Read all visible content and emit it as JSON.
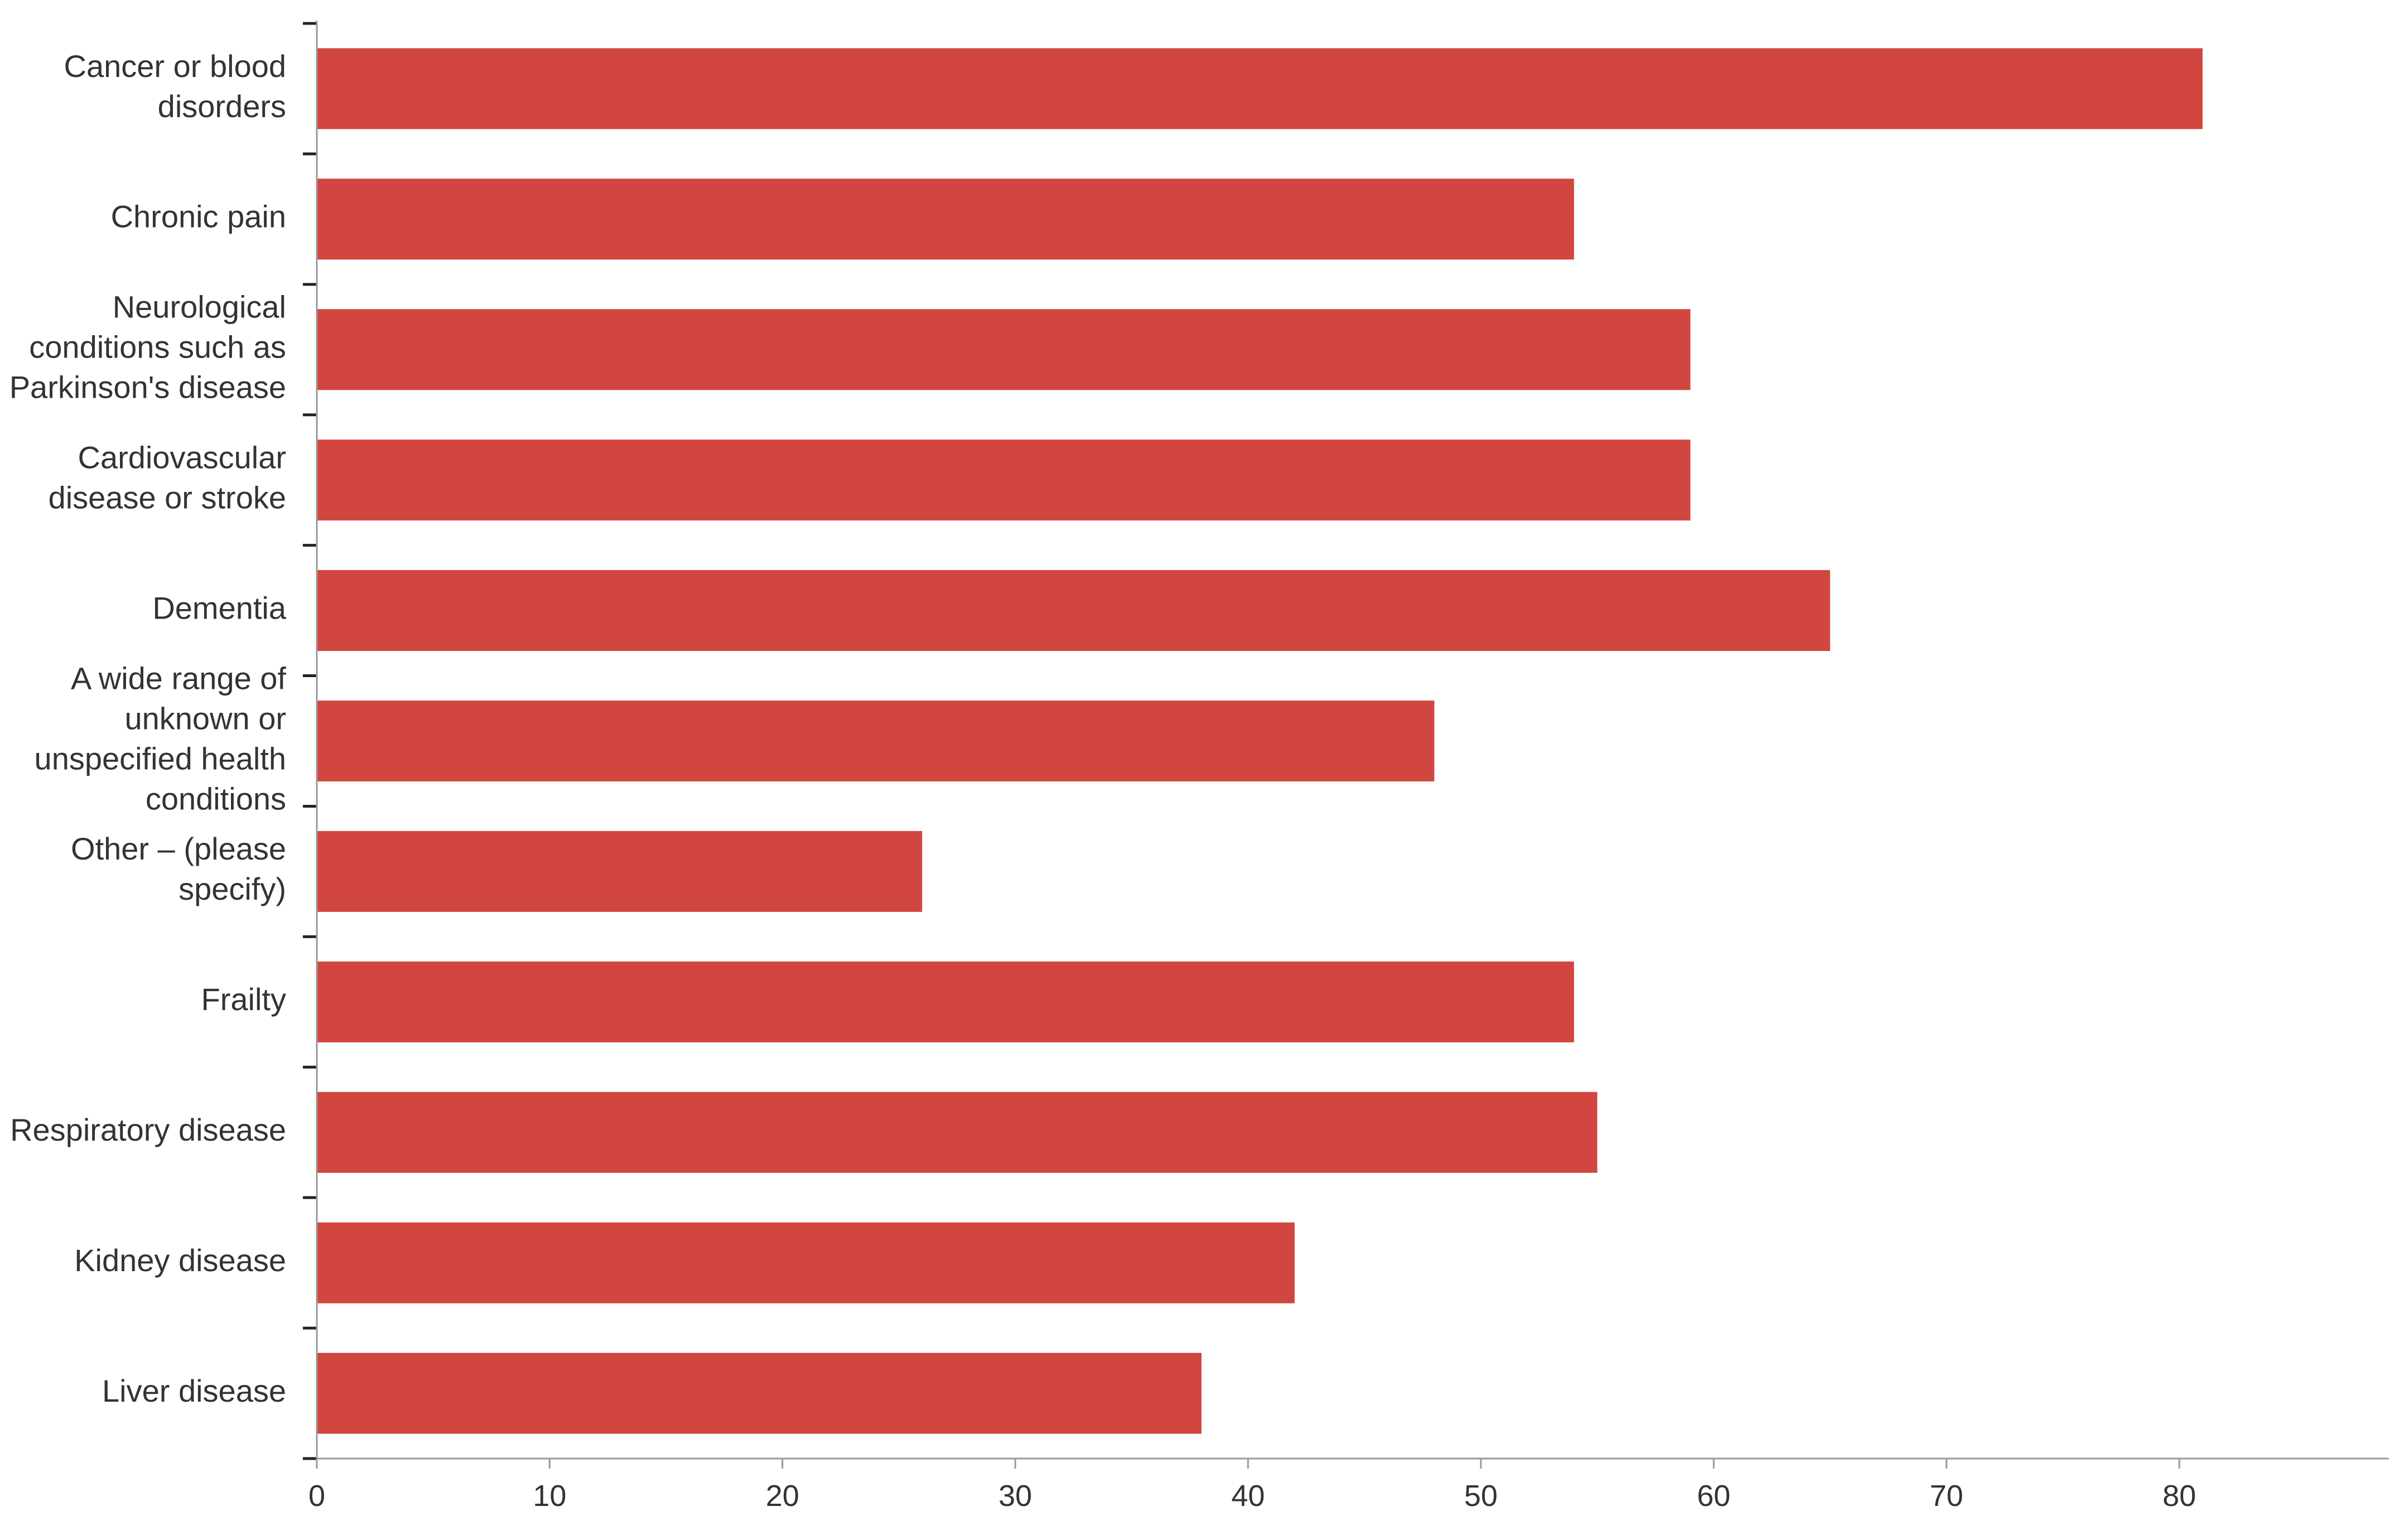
{
  "chart_data": {
    "type": "bar",
    "orientation": "horizontal",
    "categories": [
      [
        "Cancer or blood",
        "disorders"
      ],
      [
        "Chronic pain"
      ],
      [
        "Neurological",
        "conditions such as",
        "Parkinson's disease"
      ],
      [
        "Cardiovascular",
        "disease or stroke"
      ],
      [
        "Dementia"
      ],
      [
        "A wide range of",
        "unknown or",
        "unspecified health",
        "conditions"
      ],
      [
        "Other – (please",
        "specify)"
      ],
      [
        "Frailty"
      ],
      [
        "Respiratory disease"
      ],
      [
        "Kidney disease"
      ],
      [
        "Liver disease"
      ]
    ],
    "values": [
      81,
      54,
      59,
      59,
      65,
      48,
      26,
      54,
      55,
      42,
      38
    ],
    "xlim": [
      0,
      89
    ],
    "x_ticks": [
      "0",
      "10",
      "20",
      "30",
      "40",
      "50",
      "60",
      "70",
      "80"
    ],
    "title": "",
    "xlabel": "",
    "ylabel": "",
    "grid": false,
    "legend": "none",
    "bar_color": "#d1463f"
  }
}
